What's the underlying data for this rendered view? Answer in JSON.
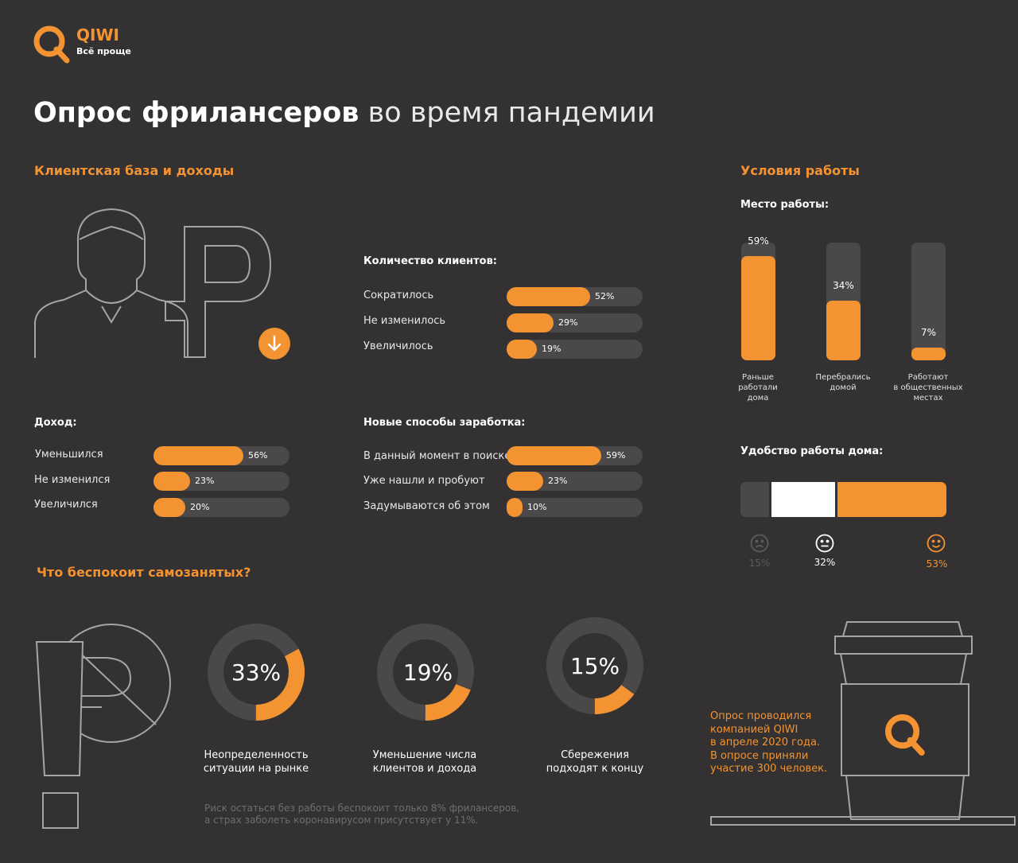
{
  "brand": {
    "name": "QIWI",
    "tagline": "Всё проще"
  },
  "title": {
    "bold": "Опрос фрилансеров",
    "thin": "во время пандемии"
  },
  "colors": {
    "accent": "#f39331",
    "background": "#333132",
    "track": "#4a4849"
  },
  "sections": {
    "clients_income": "Клиентская база и доходы",
    "work_conditions": "Условия работы",
    "worries": "Что беспокоит самозанятых?"
  },
  "chart_data": [
    {
      "type": "bar",
      "orientation": "horizontal",
      "title": "Количество клиентов:",
      "categories": [
        "Сократилось",
        "Не изменилось",
        "Увеличилось"
      ],
      "values": [
        52,
        29,
        19
      ],
      "labels": [
        "52%",
        "29%",
        "19%"
      ],
      "xlim": [
        0,
        100
      ]
    },
    {
      "type": "bar",
      "orientation": "horizontal",
      "title": "Доход:",
      "categories": [
        "Уменьшился",
        "Не изменился",
        "Увеличился"
      ],
      "values": [
        56,
        23,
        20
      ],
      "labels": [
        "56%",
        "23%",
        "20%"
      ],
      "xlim": [
        0,
        100
      ]
    },
    {
      "type": "bar",
      "orientation": "horizontal",
      "title": "Новые способы заработка:",
      "categories": [
        "В данный момент в поиске",
        "Уже нашли и пробуют",
        "Задумываются об этом"
      ],
      "values": [
        59,
        23,
        10
      ],
      "labels": [
        "59%",
        "23%",
        "10%"
      ],
      "xlim": [
        0,
        100
      ]
    },
    {
      "type": "bar",
      "orientation": "vertical",
      "title": "Место работы:",
      "categories": [
        "Раньше работали дома",
        "Перебрались домой",
        "Работают в общественных местах"
      ],
      "category_lines": [
        [
          "Раньше",
          "работали",
          "дома"
        ],
        [
          "Перебрались",
          "домой"
        ],
        [
          "Работают",
          "в общественных",
          "местах"
        ]
      ],
      "values": [
        59,
        34,
        7
      ],
      "labels": [
        "59%",
        "34%",
        "7%"
      ],
      "ylim": [
        0,
        100
      ]
    },
    {
      "type": "bar",
      "orientation": "stacked-horizontal",
      "title": "Удобство работы дома:",
      "segments": [
        {
          "icon": "sad-face-icon",
          "value": 15,
          "label": "15%",
          "color": "#4a4849"
        },
        {
          "icon": "neutral-face-icon",
          "value": 32,
          "label": "32%",
          "color": "#ffffff"
        },
        {
          "icon": "happy-face-icon",
          "value": 53,
          "label": "53%",
          "color": "#f39331"
        }
      ]
    },
    {
      "type": "pie",
      "style": "donut",
      "items": [
        {
          "value": 33,
          "label": "33%",
          "caption": [
            "Неопределенность",
            "ситуации на рынке"
          ]
        },
        {
          "value": 19,
          "label": "19%",
          "caption": [
            "Уменьшение числа",
            "клиентов и дохода"
          ]
        },
        {
          "value": 15,
          "label": "15%",
          "caption": [
            "Сбережения",
            "подходят к концу"
          ]
        }
      ]
    }
  ],
  "footnote": [
    "Риск остаться без работы беспокоит только 8% фрилансеров,",
    "а страх заболеть коронавирусом присутствует у 11%."
  ],
  "survey_note": [
    "Опрос проводился",
    "компанией QIWI",
    "в апреле 2020 года.",
    "В опросе приняли",
    "участие 300 человек."
  ]
}
